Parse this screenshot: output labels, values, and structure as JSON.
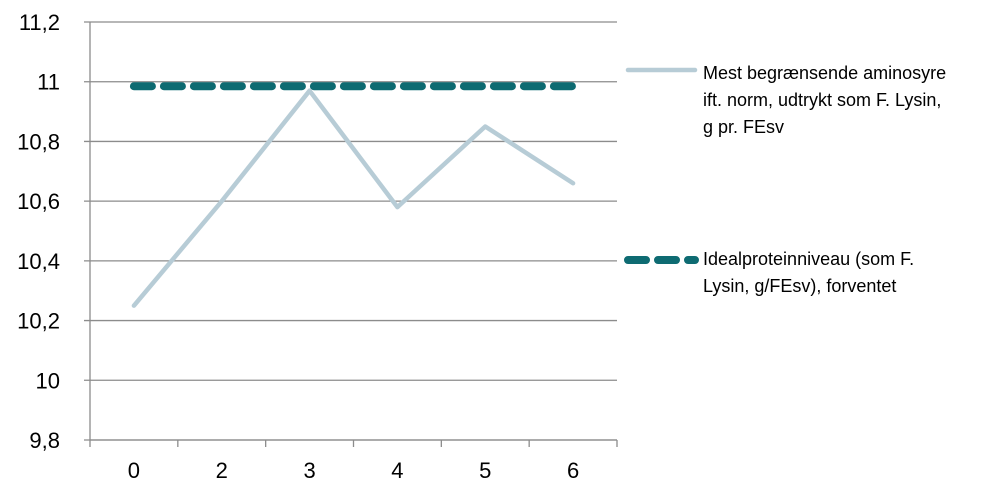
{
  "chart_data": {
    "type": "line",
    "categories": [
      "0",
      "2",
      "3",
      "4",
      "5",
      "6"
    ],
    "series": [
      {
        "name": "Mest begrænsende aminosyre ift. norm, udtrykt som F. Lysin, g pr. FEsv",
        "legend_lines": [
          "Mest begrænsende aminosyre",
          "ift. norm, udtrykt som F. Lysin,",
          "g pr. FEsv"
        ],
        "values": [
          10.25,
          10.6,
          10.97,
          10.58,
          10.85,
          10.66
        ],
        "color": "#b7ccd6",
        "style": "solid"
      },
      {
        "name": "Idealproteinniveau (som F. Lysin, g/FEsv), forventet",
        "legend_lines": [
          "Idealproteinniveau (som F.",
          "Lysin, g/FEsv), forventet"
        ],
        "values": [
          10.985,
          10.985,
          10.985,
          10.985,
          10.985,
          10.985
        ],
        "color": "#0e6b72",
        "style": "dashed"
      }
    ],
    "y_ticks": [
      "9,8",
      "10",
      "10,2",
      "10,4",
      "10,6",
      "10,8",
      "11",
      "11,2"
    ],
    "ylim": [
      9.8,
      11.2
    ],
    "title": "",
    "xlabel": "",
    "ylabel": "",
    "grid": true,
    "legend_position": "right"
  }
}
